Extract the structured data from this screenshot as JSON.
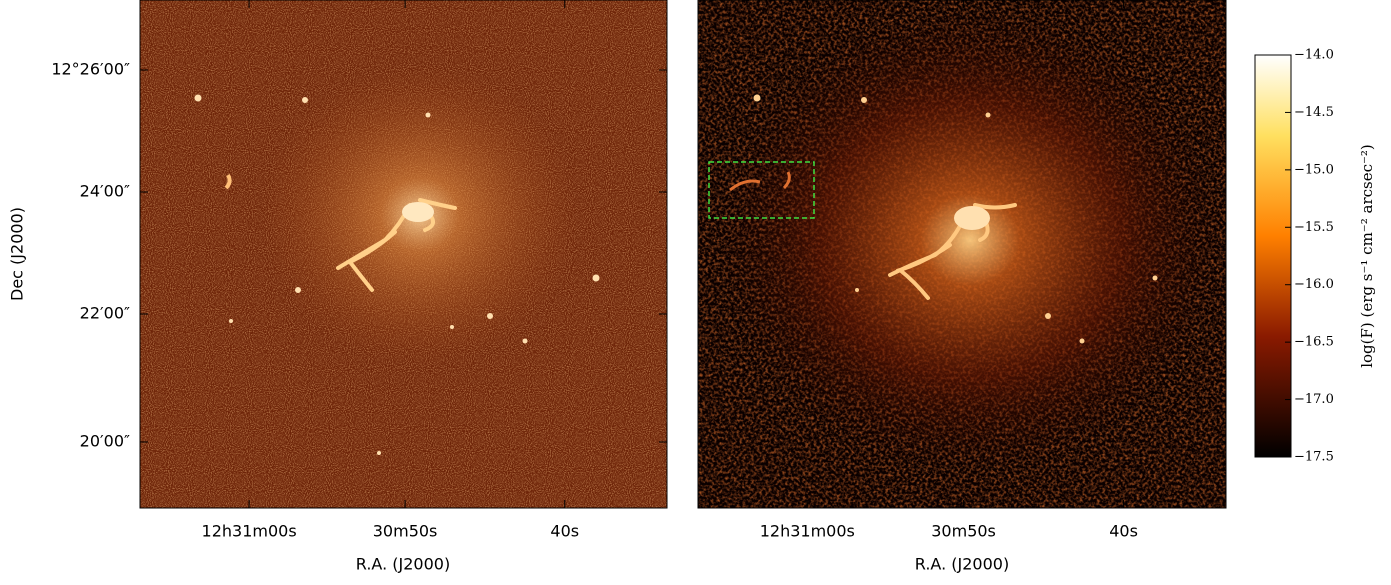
{
  "chart_data": [
    {
      "type": "image",
      "xlabel": "R.A. (J2000)",
      "ylabel": "Dec (J2000)",
      "xticks": [
        "12h31m00s",
        "30m50s",
        "40s"
      ],
      "yticks": [
        "12°26′00″",
        "24′00″",
        "22′00″",
        "20′00″"
      ]
    },
    {
      "type": "image",
      "xlabel": "R.A. (J2000)",
      "xticks": [
        "12h31m00s",
        "30m50s",
        "40s"
      ]
    },
    {
      "type": "colorbar",
      "label": "log(F) (erg s⁻¹ cm⁻² arcsec⁻²)",
      "ylim": [
        -17.5,
        -14.0
      ],
      "yticks": [
        {
          "value": -14.0,
          "label": "−14.0"
        },
        {
          "value": -14.5,
          "label": "−14.5"
        },
        {
          "value": -15.0,
          "label": "−15.0"
        },
        {
          "value": -15.5,
          "label": "−15.5"
        },
        {
          "value": -16.0,
          "label": "−16.0"
        },
        {
          "value": -16.5,
          "label": "−16.5"
        },
        {
          "value": -17.0,
          "label": "−17.0"
        },
        {
          "value": -17.5,
          "label": "−17.5"
        }
      ]
    }
  ]
}
